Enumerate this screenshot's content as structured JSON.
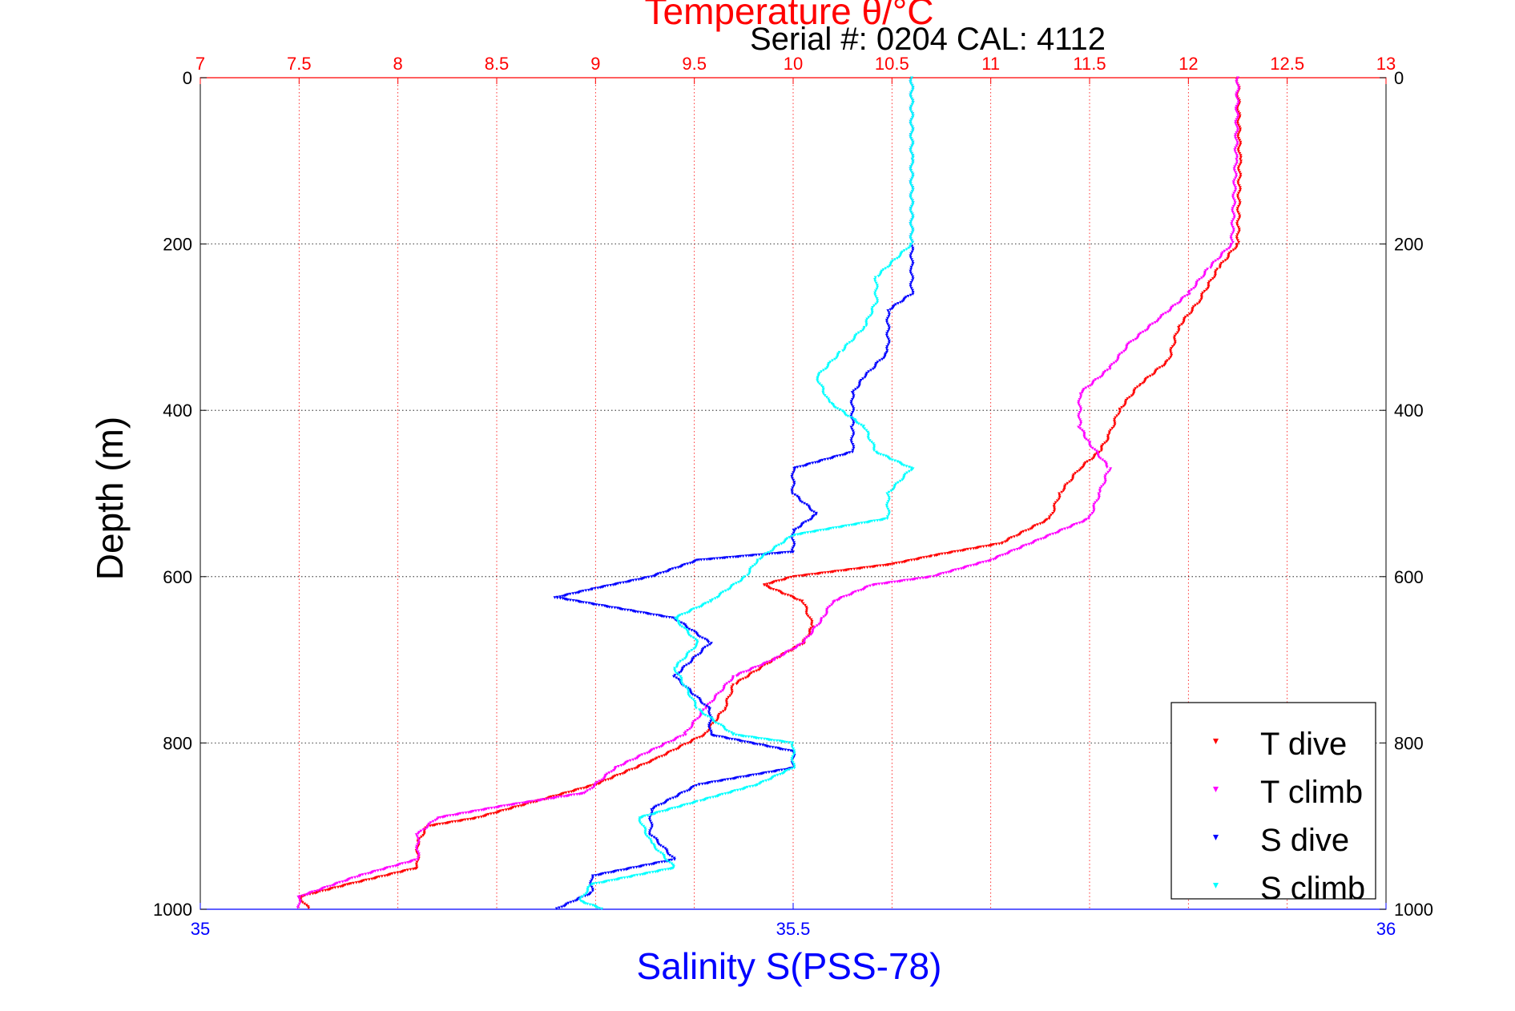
{
  "chart_data": {
    "type": "scatter",
    "title": "Temperature θ/°C",
    "subtitle": "Serial #: 0204  CAL: 4112",
    "ylabel": "Depth (m)",
    "xlabel_bottom": "Salinity S(PSS-78)",
    "ylim": [
      0,
      1000
    ],
    "y_reversed": true,
    "temperature_axis": {
      "range": [
        7,
        13
      ],
      "ticks": [
        "7",
        "7.5",
        "8",
        "8.5",
        "9",
        "9.5",
        "10",
        "10.5",
        "11",
        "11.5",
        "12",
        "12.5",
        "13"
      ]
    },
    "salinity_axis": {
      "range": [
        35,
        36
      ],
      "ticks": [
        "35",
        "35.5",
        "36"
      ]
    },
    "depth_ticks": [
      "0",
      "200",
      "400",
      "600",
      "800",
      "1000"
    ],
    "grid": true,
    "legend_position": "bottom-right",
    "series": [
      {
        "name": "T dive",
        "axis": "temperature",
        "color": "#ff0000",
        "points": [
          [
            12.25,
            0
          ],
          [
            12.26,
            100
          ],
          [
            12.25,
            200
          ],
          [
            12.15,
            230
          ],
          [
            12.05,
            270
          ],
          [
            11.95,
            300
          ],
          [
            11.9,
            340
          ],
          [
            11.75,
            370
          ],
          [
            11.65,
            400
          ],
          [
            11.6,
            430
          ],
          [
            11.55,
            450
          ],
          [
            11.45,
            470
          ],
          [
            11.35,
            500
          ],
          [
            11.3,
            530
          ],
          [
            11.05,
            560
          ],
          [
            10.7,
            575
          ],
          [
            10.5,
            585
          ],
          [
            10.0,
            600
          ],
          [
            9.85,
            610
          ],
          [
            10.05,
            630
          ],
          [
            10.1,
            660
          ],
          [
            10.05,
            680
          ],
          [
            9.9,
            700
          ],
          [
            9.7,
            730
          ],
          [
            9.65,
            760
          ],
          [
            9.55,
            790
          ],
          [
            9.3,
            820
          ],
          [
            9.0,
            850
          ],
          [
            8.7,
            870
          ],
          [
            8.4,
            890
          ],
          [
            8.15,
            900
          ],
          [
            8.1,
            920
          ],
          [
            8.1,
            950
          ],
          [
            7.75,
            970
          ],
          [
            7.5,
            985
          ],
          [
            7.55,
            1000
          ]
        ]
      },
      {
        "name": "T climb",
        "axis": "temperature",
        "color": "#ff00ff",
        "points": [
          [
            12.25,
            0
          ],
          [
            12.24,
            100
          ],
          [
            12.22,
            200
          ],
          [
            12.1,
            230
          ],
          [
            12.0,
            260
          ],
          [
            11.85,
            290
          ],
          [
            11.7,
            320
          ],
          [
            11.6,
            350
          ],
          [
            11.45,
            380
          ],
          [
            11.45,
            420
          ],
          [
            11.5,
            440
          ],
          [
            11.6,
            470
          ],
          [
            11.55,
            500
          ],
          [
            11.5,
            530
          ],
          [
            11.2,
            560
          ],
          [
            11.0,
            580
          ],
          [
            10.7,
            600
          ],
          [
            10.4,
            610
          ],
          [
            10.2,
            630
          ],
          [
            10.15,
            650
          ],
          [
            10.05,
            680
          ],
          [
            9.9,
            700
          ],
          [
            9.7,
            720
          ],
          [
            9.55,
            760
          ],
          [
            9.45,
            790
          ],
          [
            9.1,
            830
          ],
          [
            8.95,
            860
          ],
          [
            8.55,
            875
          ],
          [
            8.2,
            890
          ],
          [
            8.1,
            910
          ],
          [
            8.1,
            940
          ],
          [
            7.8,
            960
          ],
          [
            7.5,
            985
          ],
          [
            7.5,
            1000
          ]
        ]
      },
      {
        "name": "S dive",
        "axis": "salinity",
        "color": "#0000ff",
        "points": [
          [
            35.6,
            0
          ],
          [
            35.6,
            100
          ],
          [
            35.6,
            200
          ],
          [
            35.6,
            230
          ],
          [
            35.6,
            260
          ],
          [
            35.58,
            280
          ],
          [
            35.58,
            330
          ],
          [
            35.56,
            360
          ],
          [
            35.55,
            380
          ],
          [
            35.55,
            420
          ],
          [
            35.55,
            450
          ],
          [
            35.5,
            470
          ],
          [
            35.5,
            500
          ],
          [
            35.52,
            525
          ],
          [
            35.5,
            545
          ],
          [
            35.5,
            570
          ],
          [
            35.42,
            580
          ],
          [
            35.38,
            600
          ],
          [
            35.33,
            615
          ],
          [
            35.3,
            625
          ],
          [
            35.4,
            650
          ],
          [
            35.43,
            680
          ],
          [
            35.4,
            720
          ],
          [
            35.43,
            760
          ],
          [
            35.43,
            790
          ],
          [
            35.5,
            810
          ],
          [
            35.5,
            830
          ],
          [
            35.42,
            850
          ],
          [
            35.38,
            880
          ],
          [
            35.38,
            910
          ],
          [
            35.4,
            940
          ],
          [
            35.33,
            960
          ],
          [
            35.33,
            980
          ],
          [
            35.3,
            1000
          ]
        ]
      },
      {
        "name": "S climb",
        "axis": "salinity",
        "color": "#00ffff",
        "points": [
          [
            35.6,
            0
          ],
          [
            35.6,
            100
          ],
          [
            35.6,
            200
          ],
          [
            35.57,
            240
          ],
          [
            35.57,
            270
          ],
          [
            35.56,
            300
          ],
          [
            35.54,
            330
          ],
          [
            35.52,
            360
          ],
          [
            35.53,
            390
          ],
          [
            35.56,
            420
          ],
          [
            35.57,
            450
          ],
          [
            35.6,
            470
          ],
          [
            35.58,
            500
          ],
          [
            35.58,
            530
          ],
          [
            35.5,
            550
          ],
          [
            35.47,
            580
          ],
          [
            35.46,
            600
          ],
          [
            35.43,
            630
          ],
          [
            35.4,
            650
          ],
          [
            35.42,
            680
          ],
          [
            35.4,
            710
          ],
          [
            35.42,
            760
          ],
          [
            35.45,
            790
          ],
          [
            35.5,
            800
          ],
          [
            35.5,
            830
          ],
          [
            35.47,
            850
          ],
          [
            35.42,
            870
          ],
          [
            35.37,
            890
          ],
          [
            35.38,
            920
          ],
          [
            35.4,
            950
          ],
          [
            35.33,
            970
          ],
          [
            35.32,
            990
          ],
          [
            35.34,
            1000
          ]
        ]
      }
    ]
  }
}
